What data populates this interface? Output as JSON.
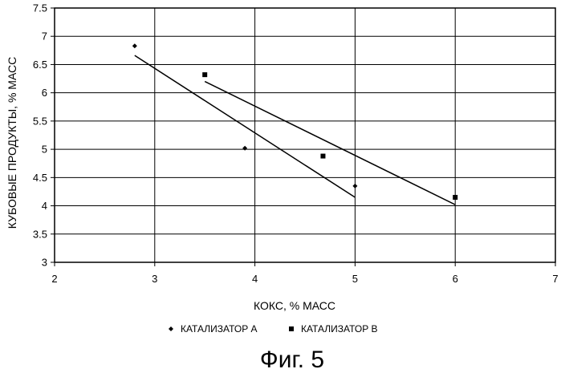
{
  "chart_data": {
    "type": "scatter",
    "xlabel": "КОКС, % МАСС",
    "ylabel": "КУБОВЫЕ ПРОДУКТЫ, % МАСС",
    "xlim": [
      2,
      7
    ],
    "ylim": [
      3,
      7.5
    ],
    "x_ticks": [
      "2",
      "3",
      "4",
      "5",
      "6",
      "7"
    ],
    "y_ticks": [
      "3",
      "3.5",
      "4",
      "4.5",
      "5",
      "5.5",
      "6",
      "6.5",
      "7",
      "7.5"
    ],
    "grid": "horizontal",
    "legend_position": "bottom",
    "series": [
      {
        "name": "КАТАЛИЗАТОР А",
        "marker": "diamond",
        "points": [
          {
            "x": 2.8,
            "y": 6.83
          },
          {
            "x": 3.9,
            "y": 5.02
          },
          {
            "x": 5.0,
            "y": 4.35
          }
        ],
        "trendline": [
          {
            "x": 2.8,
            "y": 6.66
          },
          {
            "x": 5.0,
            "y": 4.15
          }
        ]
      },
      {
        "name": "КАТАЛИЗАТОР В",
        "marker": "square",
        "points": [
          {
            "x": 3.5,
            "y": 6.32
          },
          {
            "x": 4.68,
            "y": 4.88
          },
          {
            "x": 6.0,
            "y": 4.15
          }
        ],
        "trendline": [
          {
            "x": 3.5,
            "y": 6.2
          },
          {
            "x": 6.0,
            "y": 4.02
          }
        ]
      }
    ]
  },
  "caption": "Фиг. 5",
  "colors": {
    "ink": "#000000",
    "background": "#ffffff"
  }
}
